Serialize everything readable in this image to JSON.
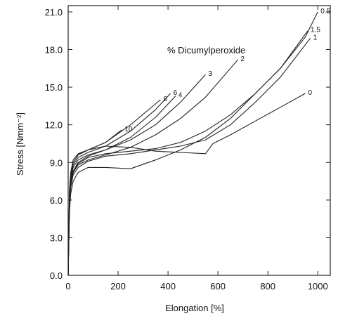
{
  "chart_data": {
    "type": "line",
    "title": "",
    "xlabel": "Elongation  [%]",
    "ylabel": "Stress  [Nmm⁻²]",
    "annotation": "% Dicumylperoxide",
    "xlim": [
      0,
      1050
    ],
    "ylim": [
      0,
      21.5
    ],
    "x_ticks": [
      "0",
      "200",
      "400",
      "600",
      "800",
      "1000"
    ],
    "y_ticks": [
      "0.0",
      "3.0",
      "6.0",
      "9.0",
      "12.0",
      "15.0",
      "18.0",
      "21.0"
    ],
    "grid": false,
    "line_color": "#222222",
    "series": [
      {
        "name": "0",
        "x": [
          0,
          5,
          10,
          20,
          40,
          80,
          150,
          250,
          350,
          450,
          550,
          580,
          650,
          750,
          850,
          950
        ],
        "y": [
          0,
          5,
          7.5,
          9,
          9.6,
          10,
          10.3,
          10.2,
          9.9,
          9.8,
          9.7,
          10.5,
          11.2,
          12.3,
          13.4,
          14.5
        ]
      },
      {
        "name": "0.5",
        "x": [
          0,
          5,
          10,
          20,
          40,
          80,
          150,
          250,
          350,
          450,
          550,
          650,
          750,
          850,
          950,
          1000
        ],
        "y": [
          0,
          5,
          6.5,
          7.5,
          8.2,
          8.6,
          8.6,
          8.5,
          9.2,
          10,
          11,
          12.5,
          14.5,
          16.5,
          19,
          21
        ]
      },
      {
        "name": "1",
        "x": [
          0,
          5,
          10,
          20,
          40,
          80,
          150,
          250,
          350,
          450,
          550,
          650,
          750,
          850,
          970
        ],
        "y": [
          0,
          5.5,
          7,
          8,
          8.6,
          9.1,
          9.5,
          9.7,
          10,
          10.3,
          10.8,
          12,
          13.8,
          15.8,
          18.9
        ]
      },
      {
        "name": "1.5",
        "x": [
          0,
          5,
          10,
          20,
          40,
          80,
          150,
          250,
          350,
          450,
          550,
          650,
          750,
          850,
          960
        ],
        "y": [
          0,
          6,
          7.3,
          8.2,
          8.9,
          9.4,
          9.7,
          9.9,
          10.1,
          10.6,
          11.5,
          12.8,
          14.5,
          16.5,
          19.5
        ]
      },
      {
        "name": "2",
        "x": [
          0,
          5,
          10,
          20,
          40,
          80,
          150,
          250,
          350,
          450,
          550,
          650,
          680
        ],
        "y": [
          0,
          5.5,
          7,
          8.2,
          8.8,
          9.2,
          9.6,
          10.2,
          11.2,
          12.5,
          14.2,
          16.5,
          17.2
        ]
      },
      {
        "name": "3",
        "x": [
          0,
          5,
          10,
          20,
          40,
          80,
          150,
          250,
          350,
          450,
          550
        ],
        "y": [
          0,
          5.8,
          7.2,
          8.3,
          9,
          9.5,
          10,
          10.8,
          12,
          13.8,
          16
        ]
      },
      {
        "name": "4",
        "x": [
          0,
          5,
          10,
          20,
          40,
          80,
          150,
          250,
          350,
          430
        ],
        "y": [
          0,
          6,
          7.5,
          8.6,
          9.2,
          9.6,
          10,
          11,
          12.6,
          14.3
        ]
      },
      {
        "name": "6",
        "x": [
          0,
          5,
          10,
          20,
          40,
          80,
          150,
          250,
          350,
          410
        ],
        "y": [
          0,
          6.3,
          7.8,
          8.8,
          9.4,
          9.8,
          10.3,
          11.5,
          13.2,
          14.5
        ]
      },
      {
        "name": "8",
        "x": [
          0,
          5,
          10,
          20,
          40,
          80,
          150,
          250,
          370
        ],
        "y": [
          0,
          6.5,
          8,
          9,
          9.6,
          10,
          10.6,
          12,
          14
        ]
      },
      {
        "name": "10",
        "x": [
          0,
          5,
          10,
          20,
          40,
          80,
          150,
          215
        ],
        "y": [
          0,
          6.8,
          8.2,
          9.2,
          9.7,
          10,
          10.6,
          11.6
        ]
      }
    ]
  }
}
